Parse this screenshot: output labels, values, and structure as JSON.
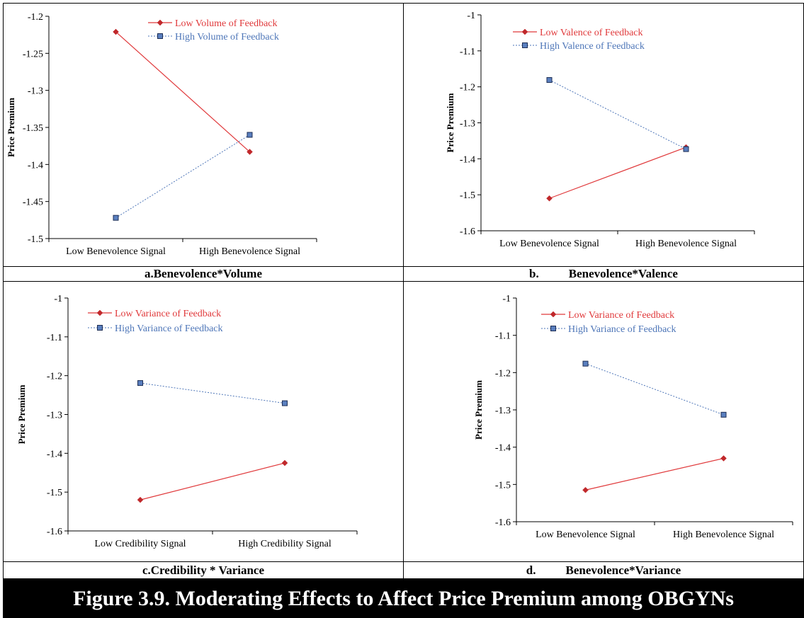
{
  "figure_title": "Figure 3.9. Moderating Effects to Affect Price Premium among OBGYNs",
  "colors": {
    "low": "#e0393b",
    "high": "#4e76b8",
    "low_marker": "#c0282b",
    "high_marker": "#3c5f9a",
    "title_bg": "#000000",
    "title_fg": "#ffffff"
  },
  "chart_data": [
    {
      "type": "line",
      "panel": "a",
      "caption_letter": "a.",
      "caption_text": "Benevolence*Volume",
      "ylabel": "Price Premium",
      "xlabel": "",
      "categories": [
        "Low Benevolence Signal",
        "High Benevolence Signal"
      ],
      "ylim": [
        -1.5,
        -1.2
      ],
      "yticks": [
        "-1.2",
        "-1.25",
        "-1.3",
        "-1.35",
        "-1.4",
        "-1.45",
        "-1.5"
      ],
      "legend_position": "top",
      "series": [
        {
          "name": "Low Volume of Feedback",
          "values": [
            -1.221,
            -1.383
          ],
          "style": "solid",
          "marker": "diamond",
          "color_key": "low"
        },
        {
          "name": "High Volume of Feedback",
          "values": [
            -1.472,
            -1.36
          ],
          "style": "dashed",
          "marker": "square",
          "color_key": "high"
        }
      ]
    },
    {
      "type": "line",
      "panel": "b",
      "caption_letter": "b.",
      "caption_text": "Benevolence*Valence",
      "ylabel": "Price Premium",
      "xlabel": "",
      "categories": [
        "Low Benevolence Signal",
        "High Benevolence Signal"
      ],
      "ylim": [
        -1.6,
        -1.0
      ],
      "yticks": [
        "-1",
        "-1.1",
        "-1.2",
        "-1.3",
        "-1.4",
        "-1.5",
        "-1.6"
      ],
      "legend_position": "top-left",
      "series": [
        {
          "name": "Low Valence of Feedback",
          "values": [
            -1.51,
            -1.368
          ],
          "style": "solid",
          "marker": "diamond",
          "color_key": "low"
        },
        {
          "name": "High Valence of Feedback",
          "values": [
            -1.181,
            -1.373
          ],
          "style": "dashed",
          "marker": "square",
          "color_key": "high"
        }
      ]
    },
    {
      "type": "line",
      "panel": "c",
      "caption_letter": "c.",
      "caption_text": "Credibility * Variance",
      "ylabel": "Price Premium",
      "xlabel": "",
      "categories": [
        "Low Credibility Signal",
        "High Credibility Signal"
      ],
      "ylim": [
        -1.6,
        -1.0
      ],
      "yticks": [
        "-1",
        "-1.1",
        "-1.2",
        "-1.3",
        "-1.4",
        "-1.5",
        "-1.6"
      ],
      "legend_position": "top-left",
      "series": [
        {
          "name": "Low Variance of Feedback",
          "values": [
            -1.52,
            -1.425
          ],
          "style": "solid",
          "marker": "diamond",
          "color_key": "low"
        },
        {
          "name": "High Variance of Feedback",
          "values": [
            -1.219,
            -1.271
          ],
          "style": "dashed",
          "marker": "square",
          "color_key": "high"
        }
      ]
    },
    {
      "type": "line",
      "panel": "d",
      "caption_letter": "d.",
      "caption_text": "Benevolence*Variance",
      "ylabel": "Price Premium",
      "xlabel": "",
      "categories": [
        "Low Benevolence Signal",
        "High Benevolence Signal"
      ],
      "ylim": [
        -1.6,
        -1.0
      ],
      "yticks": [
        "-1",
        "-1.1",
        "-1.2",
        "-1.3",
        "-1.4",
        "-1.5",
        "-1.6"
      ],
      "legend_position": "top-left",
      "series": [
        {
          "name": "Low Variance of Feedback",
          "values": [
            -1.515,
            -1.43
          ],
          "style": "solid",
          "marker": "diamond",
          "color_key": "low"
        },
        {
          "name": "High Variance of Feedback",
          "values": [
            -1.176,
            -1.313
          ],
          "style": "dashed",
          "marker": "square",
          "color_key": "high"
        }
      ]
    }
  ]
}
